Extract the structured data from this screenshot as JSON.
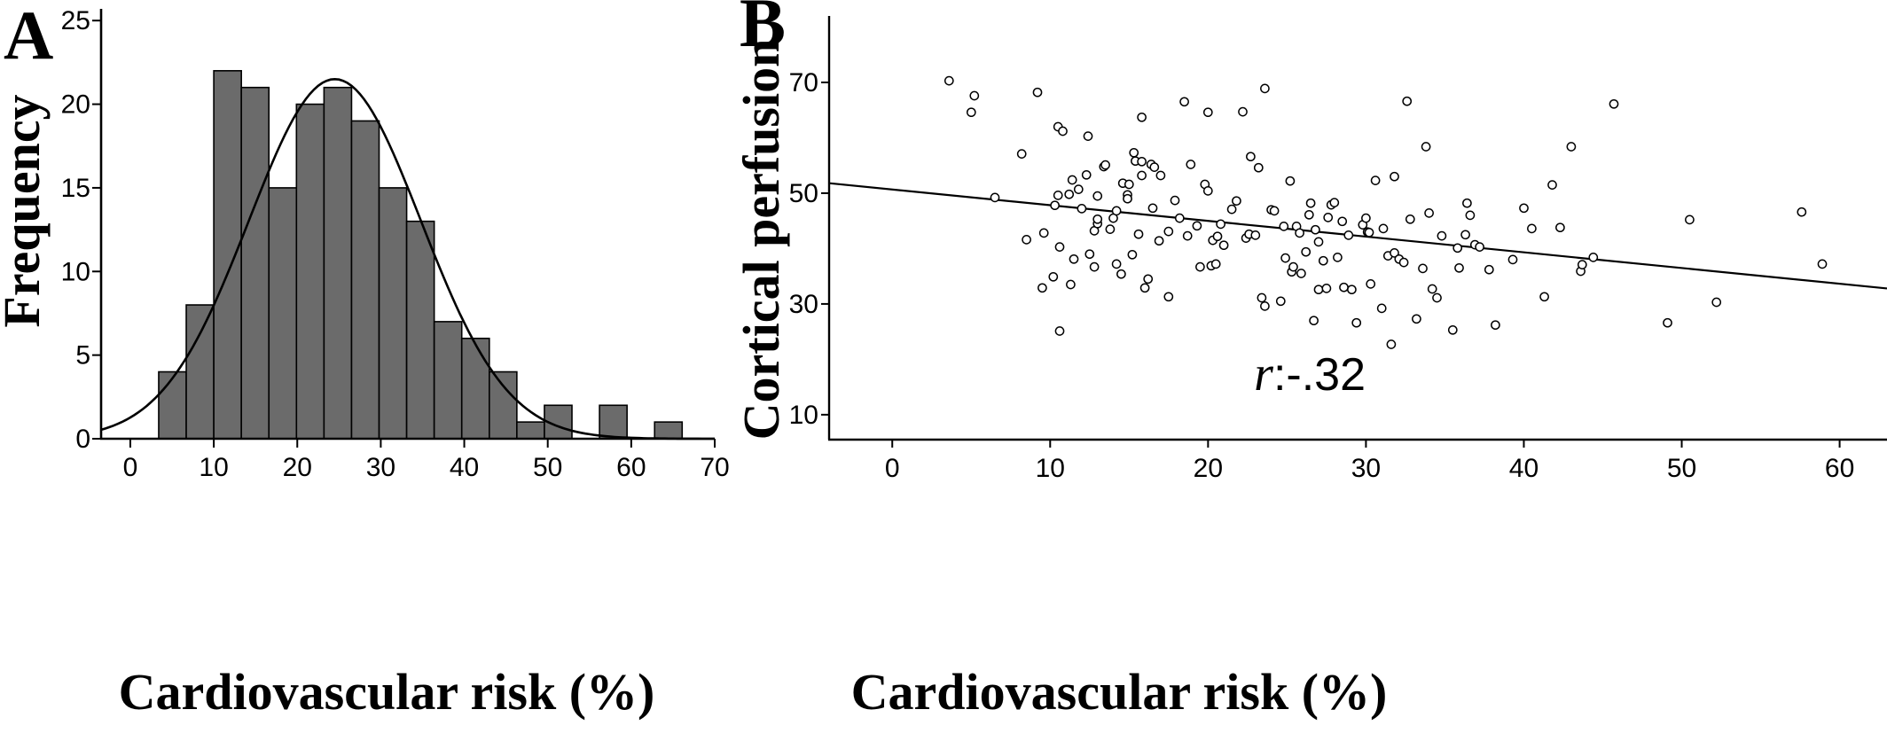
{
  "chart_data": [
    {
      "type": "bar",
      "panel_label": "A",
      "subtype": "histogram with fitted normal curve",
      "xlabel": "Cardiovascular risk (%)",
      "ylabel": "Frequency",
      "xlim": [
        -3.5,
        70
      ],
      "ylim": [
        0,
        25.7
      ],
      "xticks": [
        0,
        10,
        20,
        30,
        40,
        50,
        60,
        70
      ],
      "yticks": [
        0,
        5,
        10,
        15,
        20,
        25
      ],
      "bin_width": 3.3,
      "bins": [
        {
          "start": 3.4,
          "value": 4
        },
        {
          "start": 6.7,
          "value": 8
        },
        {
          "start": 10.0,
          "value": 22
        },
        {
          "start": 13.3,
          "value": 21
        },
        {
          "start": 16.6,
          "value": 15
        },
        {
          "start": 19.9,
          "value": 20
        },
        {
          "start": 23.2,
          "value": 21
        },
        {
          "start": 26.5,
          "value": 19
        },
        {
          "start": 29.8,
          "value": 15
        },
        {
          "start": 33.1,
          "value": 13
        },
        {
          "start": 36.4,
          "value": 7
        },
        {
          "start": 39.7,
          "value": 6
        },
        {
          "start": 43.0,
          "value": 4
        },
        {
          "start": 46.3,
          "value": 1
        },
        {
          "start": 49.6,
          "value": 2
        },
        {
          "start": 56.2,
          "value": 2
        },
        {
          "start": 62.8,
          "value": 1
        }
      ],
      "normal_curve": {
        "mean": 24.5,
        "sd": 10.3,
        "peak": 21.5
      },
      "bar_color": "#6b6b6b",
      "grid": false
    },
    {
      "type": "scatter",
      "panel_label": "B",
      "xlabel": "Cardiovascular risk (%)",
      "ylabel": "Cortical perfusion",
      "xlim": [
        -4,
        63
      ],
      "ylim": [
        5.5,
        82
      ],
      "xticks": [
        0,
        10,
        20,
        30,
        40,
        50,
        60
      ],
      "yticks": [
        10,
        30,
        50,
        70
      ],
      "annotation": {
        "italic": "r",
        "rest": ":-.32"
      },
      "regression_line": {
        "x": [
          -4,
          63
        ],
        "y": [
          51.8,
          32.8
        ]
      },
      "grid": false,
      "points": [
        [
          3.6,
          70.3
        ],
        [
          5.0,
          64.6
        ],
        [
          5.2,
          67.6
        ],
        [
          6.5,
          49.2
        ],
        [
          8.2,
          57.1
        ],
        [
          8.5,
          41.6
        ],
        [
          9.2,
          68.2
        ],
        [
          9.5,
          32.9
        ],
        [
          9.6,
          42.8
        ],
        [
          10.2,
          34.9
        ],
        [
          10.6,
          25.1
        ],
        [
          10.3,
          47.8
        ],
        [
          10.5,
          49.6
        ],
        [
          10.5,
          62.0
        ],
        [
          10.6,
          40.3
        ],
        [
          10.8,
          61.2
        ],
        [
          11.2,
          49.8
        ],
        [
          11.3,
          33.5
        ],
        [
          11.4,
          52.4
        ],
        [
          11.5,
          38.1
        ],
        [
          11.8,
          50.7
        ],
        [
          12.0,
          47.2
        ],
        [
          12.3,
          53.3
        ],
        [
          12.4,
          60.3
        ],
        [
          12.5,
          39.0
        ],
        [
          12.8,
          36.7
        ],
        [
          12.8,
          43.2
        ],
        [
          13.0,
          44.5
        ],
        [
          13.0,
          45.3
        ],
        [
          13.0,
          49.5
        ],
        [
          13.4,
          54.8
        ],
        [
          13.5,
          55.1
        ],
        [
          13.8,
          43.5
        ],
        [
          14.0,
          45.5
        ],
        [
          14.2,
          46.8
        ],
        [
          14.2,
          37.2
        ],
        [
          14.5,
          35.4
        ],
        [
          14.6,
          51.8
        ],
        [
          14.9,
          49.7
        ],
        [
          14.9,
          49.0
        ],
        [
          15.0,
          51.6
        ],
        [
          15.2,
          38.9
        ],
        [
          15.3,
          57.3
        ],
        [
          15.4,
          55.8
        ],
        [
          15.6,
          42.6
        ],
        [
          15.8,
          53.2
        ],
        [
          15.8,
          55.7
        ],
        [
          15.8,
          63.7
        ],
        [
          16.0,
          32.9
        ],
        [
          16.2,
          34.5
        ],
        [
          16.4,
          55.2
        ],
        [
          16.5,
          47.3
        ],
        [
          16.6,
          54.7
        ],
        [
          16.9,
          41.4
        ],
        [
          17.0,
          53.2
        ],
        [
          17.5,
          43.1
        ],
        [
          17.9,
          48.7
        ],
        [
          17.5,
          31.3
        ],
        [
          18.2,
          45.5
        ],
        [
          18.5,
          66.5
        ],
        [
          18.7,
          42.3
        ],
        [
          18.9,
          55.2
        ],
        [
          19.3,
          44.1
        ],
        [
          19.5,
          36.7
        ],
        [
          19.8,
          51.6
        ],
        [
          20.0,
          64.6
        ],
        [
          20.0,
          50.4
        ],
        [
          20.2,
          36.9
        ],
        [
          20.3,
          41.5
        ],
        [
          20.5,
          37.2
        ],
        [
          20.6,
          42.2
        ],
        [
          20.8,
          44.4
        ],
        [
          21.0,
          40.6
        ],
        [
          21.5,
          47.1
        ],
        [
          21.8,
          48.6
        ],
        [
          22.2,
          64.7
        ],
        [
          22.4,
          41.9
        ],
        [
          22.6,
          42.6
        ],
        [
          22.7,
          56.6
        ],
        [
          23.0,
          42.4
        ],
        [
          23.2,
          54.6
        ],
        [
          23.4,
          31.1
        ],
        [
          23.6,
          68.9
        ],
        [
          23.6,
          29.6
        ],
        [
          24.0,
          47.0
        ],
        [
          24.2,
          46.8
        ],
        [
          24.6,
          30.5
        ],
        [
          24.8,
          44.0
        ],
        [
          24.9,
          38.3
        ],
        [
          25.2,
          52.2
        ],
        [
          25.3,
          35.8
        ],
        [
          25.4,
          36.7
        ],
        [
          25.6,
          44.0
        ],
        [
          25.8,
          42.8
        ],
        [
          25.9,
          35.5
        ],
        [
          26.2,
          39.4
        ],
        [
          26.4,
          46.1
        ],
        [
          26.5,
          48.2
        ],
        [
          26.7,
          27.0
        ],
        [
          26.8,
          43.4
        ],
        [
          27.0,
          41.2
        ],
        [
          27.0,
          32.6
        ],
        [
          27.3,
          37.8
        ],
        [
          27.5,
          32.8
        ],
        [
          27.6,
          45.6
        ],
        [
          27.8,
          47.9
        ],
        [
          28.0,
          48.3
        ],
        [
          28.2,
          38.4
        ],
        [
          28.5,
          44.9
        ],
        [
          28.6,
          33.0
        ],
        [
          28.9,
          42.4
        ],
        [
          29.1,
          32.6
        ],
        [
          29.4,
          26.6
        ],
        [
          29.8,
          44.3
        ],
        [
          30.0,
          45.5
        ],
        [
          30.1,
          43.0
        ],
        [
          30.2,
          42.9
        ],
        [
          30.3,
          33.6
        ],
        [
          30.6,
          52.3
        ],
        [
          31.0,
          29.2
        ],
        [
          31.1,
          43.6
        ],
        [
          31.4,
          38.7
        ],
        [
          31.6,
          22.7
        ],
        [
          31.8,
          53.0
        ],
        [
          31.8,
          39.2
        ],
        [
          32.1,
          38.1
        ],
        [
          32.4,
          37.5
        ],
        [
          32.6,
          66.6
        ],
        [
          32.8,
          45.3
        ],
        [
          33.2,
          27.3
        ],
        [
          33.6,
          36.4
        ],
        [
          33.8,
          58.4
        ],
        [
          34.0,
          46.4
        ],
        [
          34.2,
          32.7
        ],
        [
          34.5,
          31.1
        ],
        [
          34.8,
          42.3
        ],
        [
          35.5,
          25.3
        ],
        [
          35.8,
          40.1
        ],
        [
          35.9,
          36.5
        ],
        [
          36.3,
          42.5
        ],
        [
          36.4,
          48.2
        ],
        [
          36.6,
          46.0
        ],
        [
          36.9,
          40.7
        ],
        [
          37.2,
          40.3
        ],
        [
          37.8,
          36.2
        ],
        [
          38.2,
          26.2
        ],
        [
          39.3,
          38.0
        ],
        [
          40.0,
          47.3
        ],
        [
          40.5,
          43.6
        ],
        [
          41.3,
          31.3
        ],
        [
          41.8,
          51.5
        ],
        [
          42.3,
          43.8
        ],
        [
          43.0,
          58.4
        ],
        [
          43.6,
          35.9
        ],
        [
          43.7,
          37.1
        ],
        [
          44.4,
          38.4
        ],
        [
          45.7,
          66.1
        ],
        [
          49.1,
          26.6
        ],
        [
          50.5,
          45.2
        ],
        [
          52.2,
          30.3
        ],
        [
          57.6,
          46.6
        ],
        [
          58.9,
          37.2
        ]
      ]
    }
  ]
}
